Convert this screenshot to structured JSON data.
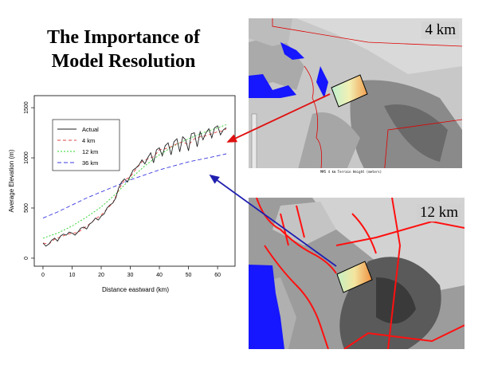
{
  "slide": {
    "title_line1": "The Importance of",
    "title_line2": "Model Resolution"
  },
  "maps": {
    "top_label": "4 km",
    "top_caption": "MM5 4 km Terrain Height (meters)",
    "bottom_label": "12 km"
  },
  "colors": {
    "actual": "#222222",
    "km4": "#e64545",
    "km12": "#2ccf2c",
    "km36": "#3a3ae0",
    "water": "#1616ff",
    "coast": "#e00000",
    "arrow_red": "#e01010",
    "arrow_blue": "#2020b0"
  },
  "chart_data": {
    "type": "line",
    "xlabel": "Distance eastward (km)",
    "ylabel": "Average Elevation (m)",
    "xlim": [
      -3,
      66
    ],
    "ylim": [
      -80,
      1620
    ],
    "xticks": [
      0,
      10,
      20,
      30,
      40,
      50,
      60
    ],
    "yticks": [
      0,
      500,
      1000,
      1500
    ],
    "legend": "top-left",
    "grid": false,
    "series": [
      {
        "name": "Actual",
        "color": "#222222",
        "dash": "",
        "x": [
          0,
          1,
          2,
          3,
          4,
          5,
          6,
          7,
          8,
          9,
          10,
          11,
          12,
          13,
          14,
          15,
          16,
          17,
          18,
          19,
          20,
          21,
          22,
          23,
          24,
          25,
          26,
          27,
          28,
          29,
          30,
          31,
          32,
          33,
          34,
          35,
          36,
          37,
          38,
          39,
          40,
          41,
          42,
          43,
          44,
          45,
          46,
          47,
          48,
          49,
          50,
          51,
          52,
          53,
          54,
          55,
          56,
          57,
          58,
          59,
          60,
          61,
          62,
          63
        ],
        "y": [
          150,
          120,
          140,
          180,
          200,
          170,
          220,
          240,
          230,
          260,
          250,
          230,
          260,
          300,
          310,
          290,
          340,
          360,
          400,
          380,
          420,
          440,
          500,
          530,
          550,
          600,
          700,
          760,
          790,
          760,
          820,
          880,
          900,
          930,
          980,
          940,
          1000,
          1050,
          950,
          1080,
          1100,
          1020,
          1120,
          1150,
          1030,
          1160,
          1190,
          1060,
          1210,
          1180,
          1070,
          1240,
          1250,
          1110,
          1260,
          1180,
          1250,
          1290,
          1200,
          1300,
          1320,
          1230,
          1280,
          1300
        ]
      },
      {
        "name": "4 km",
        "color": "#e64545",
        "dash": "4,3",
        "x": [
          0,
          2,
          4,
          6,
          8,
          10,
          12,
          14,
          16,
          18,
          20,
          22,
          24,
          26,
          28,
          30,
          32,
          34,
          36,
          38,
          40,
          42,
          44,
          46,
          48,
          50,
          52,
          54,
          56,
          58,
          60,
          62,
          63
        ],
        "y": [
          150,
          140,
          190,
          210,
          235,
          250,
          255,
          300,
          340,
          390,
          430,
          490,
          550,
          680,
          780,
          810,
          890,
          960,
          990,
          1010,
          1080,
          1090,
          1110,
          1140,
          1160,
          1130,
          1190,
          1210,
          1220,
          1240,
          1260,
          1270,
          1290
        ]
      },
      {
        "name": "12 km",
        "color": "#2ccf2c",
        "dash": "2,2",
        "x": [
          0,
          5,
          10,
          15,
          20,
          25,
          30,
          35,
          40,
          45,
          50,
          55,
          60,
          63
        ],
        "y": [
          200,
          250,
          320,
          410,
          510,
          640,
          790,
          920,
          1030,
          1120,
          1190,
          1250,
          1300,
          1330
        ]
      },
      {
        "name": "36 km",
        "color": "#3a3ae0",
        "dash": "5,3",
        "x": [
          0,
          5,
          10,
          15,
          20,
          25,
          30,
          35,
          40,
          45,
          50,
          55,
          60,
          63
        ],
        "y": [
          400,
          460,
          530,
          600,
          660,
          720,
          780,
          830,
          880,
          920,
          960,
          990,
          1020,
          1040
        ]
      }
    ]
  }
}
